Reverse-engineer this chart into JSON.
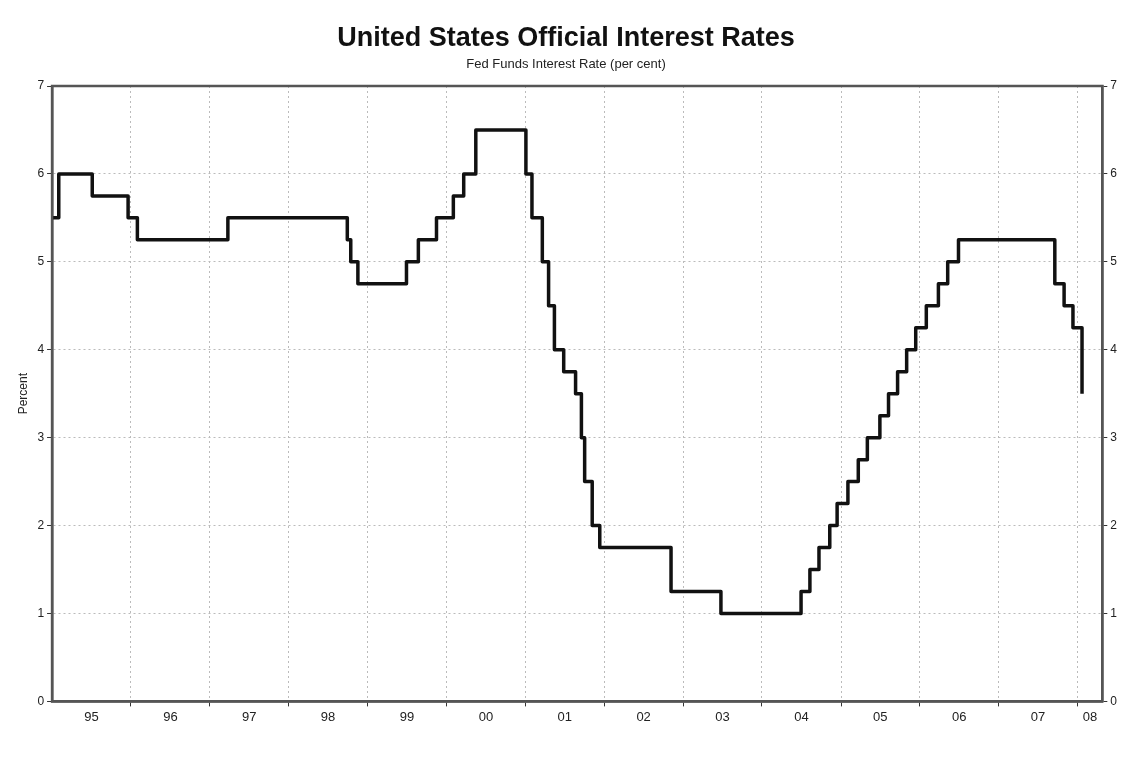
{
  "chart_data": {
    "type": "step",
    "title": "United States Official Interest Rates",
    "subtitle": "Fed Funds Interest Rate (per cent)",
    "ylabel": "Percent",
    "x": [
      "1995-01-01",
      "1995-02-01",
      "1995-07-06",
      "1995-12-19",
      "1996-01-31",
      "1997-03-25",
      "1998-09-29",
      "1998-10-15",
      "1998-11-17",
      "1999-06-30",
      "1999-08-24",
      "1999-11-16",
      "2000-02-02",
      "2000-03-21",
      "2000-05-16",
      "2001-01-03",
      "2001-01-31",
      "2001-03-20",
      "2001-04-18",
      "2001-05-15",
      "2001-06-27",
      "2001-08-21",
      "2001-09-17",
      "2001-10-02",
      "2001-11-06",
      "2001-12-11",
      "2002-11-06",
      "2003-06-25",
      "2004-06-30",
      "2004-08-10",
      "2004-09-21",
      "2004-11-10",
      "2004-12-14",
      "2005-02-02",
      "2005-03-22",
      "2005-05-03",
      "2005-06-30",
      "2005-08-09",
      "2005-09-20",
      "2005-11-01",
      "2005-12-13",
      "2006-01-31",
      "2006-03-28",
      "2006-05-10",
      "2006-06-29",
      "2007-09-18",
      "2007-10-31",
      "2007-12-11",
      "2008-01-22"
    ],
    "series": [
      {
        "color": "#111111",
        "values": [
          5.5,
          6.0,
          5.75,
          5.5,
          5.25,
          5.5,
          5.25,
          5.0,
          4.75,
          5.0,
          5.25,
          5.5,
          5.75,
          6.0,
          6.5,
          6.0,
          5.5,
          5.0,
          4.5,
          4.0,
          3.75,
          3.5,
          3.0,
          2.5,
          2.0,
          1.75,
          1.25,
          1.0,
          1.25,
          1.5,
          1.75,
          2.0,
          2.25,
          2.5,
          2.75,
          3.0,
          3.25,
          3.5,
          3.75,
          4.0,
          4.25,
          4.5,
          4.75,
          5.0,
          5.25,
          4.75,
          4.5,
          4.25,
          3.5
        ]
      }
    ],
    "xlim": [
      "1995-01-01",
      "2008-04-25"
    ],
    "xticks": [
      {
        "value": "1995-07-02",
        "label": "95"
      },
      {
        "value": "1996-01-01",
        "label": null
      },
      {
        "value": "1996-07-02",
        "label": "96"
      },
      {
        "value": "1997-01-01",
        "label": null
      },
      {
        "value": "1997-07-02",
        "label": "97"
      },
      {
        "value": "1998-01-01",
        "label": null
      },
      {
        "value": "1998-07-02",
        "label": "98"
      },
      {
        "value": "1999-01-01",
        "label": null
      },
      {
        "value": "1999-07-02",
        "label": "99"
      },
      {
        "value": "2000-01-01",
        "label": null
      },
      {
        "value": "2000-07-02",
        "label": "00"
      },
      {
        "value": "2001-01-01",
        "label": null
      },
      {
        "value": "2001-07-02",
        "label": "01"
      },
      {
        "value": "2002-01-01",
        "label": null
      },
      {
        "value": "2002-07-02",
        "label": "02"
      },
      {
        "value": "2003-01-01",
        "label": null
      },
      {
        "value": "2003-07-02",
        "label": "03"
      },
      {
        "value": "2004-01-01",
        "label": null
      },
      {
        "value": "2004-07-02",
        "label": "04"
      },
      {
        "value": "2005-01-01",
        "label": null
      },
      {
        "value": "2005-07-02",
        "label": "05"
      },
      {
        "value": "2006-01-01",
        "label": null
      },
      {
        "value": "2006-07-02",
        "label": "06"
      },
      {
        "value": "2007-01-01",
        "label": null
      },
      {
        "value": "2007-07-02",
        "label": "07"
      },
      {
        "value": "2008-01-01",
        "label": null
      },
      {
        "value": "2008-02-28",
        "label": "08"
      }
    ],
    "ylim": [
      0,
      7
    ],
    "yticks": [
      0,
      1,
      2,
      3,
      4,
      5,
      6,
      7
    ],
    "y2lim": [
      0,
      7
    ],
    "y2ticks": [
      0,
      1,
      2,
      3,
      4,
      5,
      6,
      7
    ],
    "grid": true,
    "legend": false
  }
}
